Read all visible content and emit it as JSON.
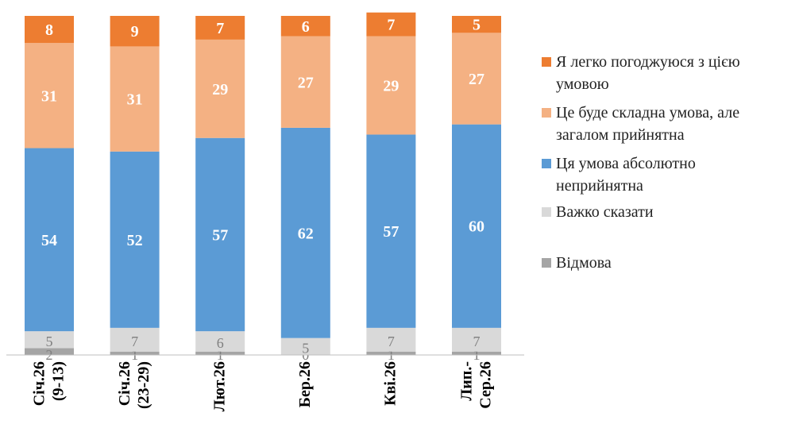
{
  "chart_data": {
    "type": "bar",
    "stacked": true,
    "categories": [
      [
        "Січ.26",
        "(9-13)"
      ],
      [
        "Січ.26",
        "(23-29)"
      ],
      [
        "Лют.26"
      ],
      [
        "Бер.26"
      ],
      [
        "Кві.26"
      ],
      [
        "Лип.-",
        "Сер.26"
      ]
    ],
    "series": [
      {
        "name": "Відмова",
        "color": "#a5a5a5",
        "values": [
          2,
          1,
          1,
          0,
          1,
          1
        ]
      },
      {
        "name": "Важко сказати",
        "color": "#d9d9d9",
        "values": [
          5,
          7,
          6,
          5,
          7,
          7
        ]
      },
      {
        "name": "Ця умова абсолютно неприйнятна",
        "color": "#5b9bd5",
        "values": [
          54,
          52,
          57,
          62,
          57,
          60
        ]
      },
      {
        "name": "Це буде складна умова, але загалом прийнятна",
        "color": "#f4b183",
        "values": [
          31,
          31,
          29,
          27,
          29,
          27
        ]
      },
      {
        "name": "Я легко погоджуюся з цією умовою",
        "color": "#ed7d31",
        "values": [
          8,
          9,
          7,
          6,
          7,
          5
        ]
      }
    ],
    "legend": {
      "position": "right",
      "order": [
        4,
        3,
        2,
        1,
        0
      ],
      "lines": [
        [
          "Я легко погоджуюся з цією",
          "умовою"
        ],
        [
          "Це буде складна умова, але",
          "загалом прийнятна"
        ],
        [
          "Ця умова абсолютно",
          "неприйнятна"
        ],
        [
          "Важко сказати"
        ],
        [
          "Відмова"
        ]
      ]
    },
    "grid": false
  }
}
